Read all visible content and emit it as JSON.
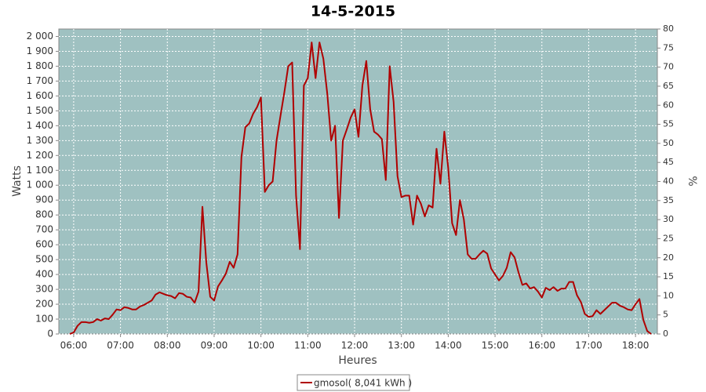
{
  "chart_data": {
    "type": "line",
    "title": "14-5-2015",
    "x_label": "Heures",
    "y_label": "Watts",
    "y2_label": "%",
    "background": "#9fc1c1",
    "grid": true,
    "xlim": [
      "05:41",
      "18:28"
    ],
    "xticks": [
      "06:00",
      "07:00",
      "08:00",
      "09:00",
      "10:00",
      "11:00",
      "12:00",
      "13:00",
      "14:00",
      "15:00",
      "16:00",
      "17:00",
      "18:00"
    ],
    "ylim": [
      0,
      2050
    ],
    "yticks": [
      0,
      100,
      200,
      300,
      400,
      500,
      600,
      700,
      800,
      900,
      {
        "value": 1000,
        "label": "1 000"
      },
      {
        "value": 1100,
        "label": "1 100"
      },
      {
        "value": 1200,
        "label": "1 200"
      },
      {
        "value": 1300,
        "label": "1 300"
      },
      {
        "value": 1400,
        "label": "1 400"
      },
      {
        "value": 1500,
        "label": "1 500"
      },
      {
        "value": 1600,
        "label": "1 600"
      },
      {
        "value": 1700,
        "label": "1 700"
      },
      {
        "value": 1800,
        "label": "1 800"
      },
      {
        "value": 1900,
        "label": "1 900"
      },
      {
        "value": 2000,
        "label": "2 000"
      }
    ],
    "y2lim": [
      0,
      80
    ],
    "y2ticks": [
      0,
      5,
      10,
      15,
      20,
      25,
      30,
      35,
      40,
      45,
      50,
      55,
      60,
      65,
      70,
      75,
      80
    ],
    "x": [
      "05:55",
      "06:00",
      "06:05",
      "06:10",
      "06:15",
      "06:20",
      "06:25",
      "06:30",
      "06:35",
      "06:40",
      "06:45",
      "06:50",
      "06:55",
      "07:00",
      "07:05",
      "07:10",
      "07:15",
      "07:20",
      "07:25",
      "07:30",
      "07:35",
      "07:40",
      "07:45",
      "07:50",
      "07:55",
      "08:00",
      "08:05",
      "08:10",
      "08:15",
      "08:20",
      "08:25",
      "08:30",
      "08:35",
      "08:40",
      "08:45",
      "08:50",
      "08:55",
      "09:00",
      "09:05",
      "09:10",
      "09:15",
      "09:20",
      "09:25",
      "09:30",
      "09:35",
      "09:40",
      "09:45",
      "09:50",
      "09:55",
      "10:00",
      "10:05",
      "10:10",
      "10:15",
      "10:20",
      "10:25",
      "10:30",
      "10:35",
      "10:40",
      "10:45",
      "10:50",
      "10:55",
      "11:00",
      "11:05",
      "11:10",
      "11:15",
      "11:20",
      "11:25",
      "11:30",
      "11:35",
      "11:40",
      "11:45",
      "11:50",
      "11:55",
      "12:00",
      "12:05",
      "12:10",
      "12:15",
      "12:20",
      "12:25",
      "12:30",
      "12:35",
      "12:40",
      "12:45",
      "12:50",
      "12:55",
      "13:00",
      "13:05",
      "13:10",
      "13:15",
      "13:20",
      "13:25",
      "13:30",
      "13:35",
      "13:40",
      "13:45",
      "13:50",
      "13:55",
      "14:00",
      "14:05",
      "14:10",
      "14:15",
      "14:20",
      "14:25",
      "14:30",
      "14:35",
      "14:40",
      "14:45",
      "14:50",
      "14:55",
      "15:00",
      "15:05",
      "15:10",
      "15:15",
      "15:20",
      "15:25",
      "15:30",
      "15:35",
      "15:40",
      "15:45",
      "15:50",
      "15:55",
      "16:00",
      "16:05",
      "16:10",
      "16:15",
      "16:20",
      "16:25",
      "16:30",
      "16:35",
      "16:40",
      "16:45",
      "16:50",
      "16:55",
      "17:00",
      "17:05",
      "17:10",
      "17:15",
      "17:20",
      "17:25",
      "17:30",
      "17:35",
      "17:40",
      "17:45",
      "17:50",
      "17:55",
      "18:00",
      "18:05",
      "18:10",
      "18:15",
      "18:20"
    ],
    "series": [
      {
        "name": "gmosol( 8,041 kWh )",
        "color": "#b00000",
        "values": [
          0,
          10,
          55,
          80,
          80,
          75,
          80,
          100,
          90,
          105,
          100,
          130,
          165,
          160,
          180,
          175,
          165,
          165,
          185,
          195,
          210,
          225,
          265,
          280,
          270,
          260,
          255,
          240,
          275,
          270,
          250,
          245,
          210,
          285,
          855,
          480,
          250,
          225,
          320,
          360,
          405,
          485,
          445,
          535,
          1190,
          1390,
          1415,
          1480,
          1525,
          1590,
          955,
          1000,
          1025,
          1300,
          1465,
          1625,
          1800,
          1825,
          930,
          570,
          1670,
          1720,
          1960,
          1720,
          1960,
          1850,
          1615,
          1300,
          1400,
          780,
          1300,
          1375,
          1455,
          1510,
          1325,
          1670,
          1835,
          1510,
          1360,
          1340,
          1310,
          1035,
          1800,
          1560,
          1060,
          920,
          930,
          930,
          735,
          930,
          875,
          790,
          865,
          850,
          1245,
          1010,
          1360,
          1115,
          745,
          665,
          900,
          770,
          535,
          505,
          505,
          535,
          560,
          540,
          440,
          400,
          360,
          390,
          445,
          550,
          515,
          415,
          330,
          340,
          305,
          315,
          285,
          245,
          310,
          295,
          315,
          290,
          305,
          305,
          350,
          350,
          260,
          215,
          135,
          115,
          120,
          160,
          135,
          160,
          185,
          210,
          210,
          190,
          180,
          165,
          160,
          200,
          235,
          95,
          20,
          0
        ]
      }
    ]
  }
}
